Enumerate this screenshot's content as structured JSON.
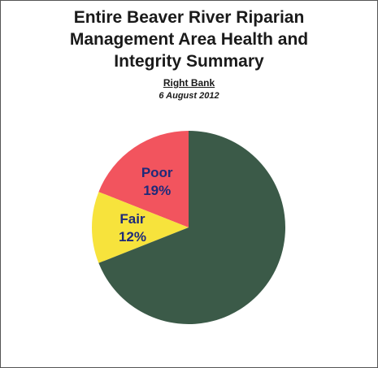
{
  "chart_data": {
    "type": "pie",
    "title_lines": [
      "Entire Beaver River Riparian",
      "Management Area Health and",
      "Integrity Summary"
    ],
    "subtitle": "Right Bank",
    "date": "6 August 2012",
    "slices": [
      {
        "name": "Poor",
        "value": 19,
        "label": "19%",
        "color": "#f2545e"
      },
      {
        "name": "Fair",
        "value": 12,
        "label": "12%",
        "color": "#f7e33c"
      },
      {
        "name": "",
        "value": 69,
        "label": "",
        "color": "#3b5a48"
      }
    ],
    "legend": "none"
  }
}
